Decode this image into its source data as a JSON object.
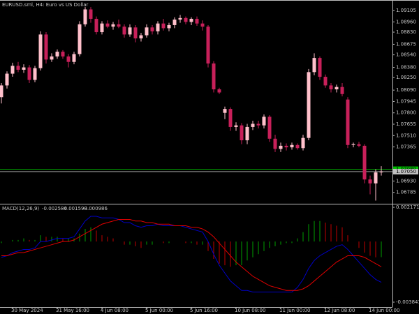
{
  "chart_data": [
    {
      "type": "candlestick",
      "title": "EURUSD.sml, H4:  Euro vs US Dollar",
      "up_color": "#ffc0cb",
      "down_color": "#c8205a",
      "open": [
        1.08,
        1.0815,
        1.083,
        1.084,
        1.0835,
        1.0838,
        1.0822,
        1.0837,
        1.088,
        1.0848,
        1.0852,
        1.0858,
        1.0852,
        1.0845,
        1.0855,
        1.0893,
        1.0912,
        1.09,
        1.0883,
        1.0894,
        1.089,
        1.0893,
        1.089,
        1.088,
        1.0889,
        1.0875,
        1.0879,
        1.0889,
        1.0884,
        1.0894,
        1.0888,
        1.0892,
        1.0899,
        1.0901,
        1.0896,
        1.09,
        1.0894,
        1.089,
        1.0843,
        1.081,
        1.078,
        1.0785,
        1.0762,
        1.0764,
        1.0745,
        1.0762,
        1.0766,
        1.0764,
        1.0775,
        1.0747,
        1.0734,
        1.0738,
        1.0736,
        1.0739,
        1.0735,
        1.0748,
        1.0832,
        1.085,
        1.0826,
        1.0815,
        1.081,
        1.0813,
        1.0797,
        1.0739,
        1.074,
        1.0738,
        1.0695,
        1.069,
        1.0704
      ],
      "high": [
        1.0818,
        1.0833,
        1.0844,
        1.0845,
        1.0842,
        1.0841,
        1.084,
        1.0884,
        1.0883,
        1.0856,
        1.0861,
        1.086,
        1.0855,
        1.0858,
        1.0897,
        1.0915,
        1.0915,
        1.0903,
        1.0897,
        1.0898,
        1.0896,
        1.0899,
        1.0893,
        1.0893,
        1.0892,
        1.0882,
        1.0893,
        1.0892,
        1.0897,
        1.09,
        1.0895,
        1.0902,
        1.0905,
        1.0903,
        1.0902,
        1.0903,
        1.0898,
        1.0892,
        1.0846,
        1.0812,
        1.0788,
        1.0787,
        1.0768,
        1.0767,
        1.0766,
        1.077,
        1.077,
        1.0778,
        1.0777,
        1.0752,
        1.0742,
        1.0741,
        1.0742,
        1.0741,
        1.0752,
        1.0836,
        1.0856,
        1.0852,
        1.0829,
        1.0818,
        1.0816,
        1.0818,
        1.08,
        1.0742,
        1.0743,
        1.074,
        1.07,
        1.0708,
        1.0712
      ],
      "low": [
        1.0792,
        1.0811,
        1.0826,
        1.0832,
        1.0831,
        1.0818,
        1.0819,
        1.0834,
        1.0843,
        1.0845,
        1.0849,
        1.0849,
        1.0838,
        1.0842,
        1.0852,
        1.089,
        1.0895,
        1.088,
        1.088,
        1.0888,
        1.0886,
        1.0888,
        1.0876,
        1.0877,
        1.087,
        1.0871,
        1.0876,
        1.088,
        1.088,
        1.0885,
        1.0884,
        1.0888,
        1.0895,
        1.0893,
        1.0892,
        1.0891,
        1.0885,
        1.0838,
        1.0806,
        1.0804,
        1.0772,
        1.0757,
        1.0757,
        1.074,
        1.074,
        1.0758,
        1.076,
        1.076,
        1.0743,
        1.073,
        1.073,
        1.0732,
        1.0733,
        1.0733,
        1.0732,
        1.0745,
        1.0828,
        1.0822,
        1.0812,
        1.0806,
        1.0806,
        1.0801,
        1.0735,
        1.0736,
        1.0736,
        1.069,
        1.0676,
        1.0668,
        1.07
      ],
      "close": [
        1.0815,
        1.083,
        1.084,
        1.0835,
        1.0838,
        1.0822,
        1.0837,
        1.088,
        1.0848,
        1.0852,
        1.0858,
        1.0852,
        1.0845,
        1.0855,
        1.0893,
        1.0912,
        1.09,
        1.0883,
        1.0894,
        1.089,
        1.0893,
        1.089,
        1.088,
        1.0889,
        1.0875,
        1.0879,
        1.0889,
        1.0884,
        1.0894,
        1.0888,
        1.0892,
        1.0899,
        1.0901,
        1.0896,
        1.09,
        1.0894,
        1.089,
        1.0843,
        1.081,
        1.0806,
        1.0785,
        1.0762,
        1.0764,
        1.0745,
        1.0762,
        1.0766,
        1.0764,
        1.0775,
        1.0747,
        1.0734,
        1.0738,
        1.0736,
        1.0739,
        1.0735,
        1.0748,
        1.0832,
        1.085,
        1.0826,
        1.0815,
        1.081,
        1.0813,
        1.0804,
        1.0739,
        1.074,
        1.0738,
        1.0695,
        1.069,
        1.0704,
        1.0705
      ],
      "ylim": [
        1.0664,
        1.0924
      ],
      "yticks": [
        1.09105,
        {
          "value": 1.0896,
          "label": "1.08960"
        },
        {
          "value": 1.0883,
          "label": "1.08830"
        },
        1.08675,
        {
          "value": 1.0854,
          "label": "1.08540"
        },
        {
          "value": 1.0838,
          "label": "1.08380"
        },
        {
          "value": 1.0825,
          "label": "1.08250"
        },
        {
          "value": 1.0809,
          "label": "1.08090"
        },
        1.07945,
        {
          "value": 1.078,
          "label": "1.07800"
        },
        1.07655,
        {
          "value": 1.0751,
          "label": "1.07510"
        },
        1.07365,
        {
          "value": 1.0693,
          "label": "1.06930"
        },
        1.06785
      ],
      "price_lines": [
        {
          "value": 1.0708,
          "label": "1.07080",
          "color": "#00c000"
        },
        {
          "value": 1.0705,
          "label": "1.07050",
          "color": "#c0c0c0"
        }
      ],
      "xticks": [
        {
          "value": 2,
          "label": "30 May 2024"
        },
        {
          "value": 10,
          "label": "31 May 16:00"
        },
        {
          "value": 18,
          "label": "4 Jun 08:00"
        },
        {
          "value": 26,
          "label": "5 Jun 00:00"
        },
        {
          "value": 34,
          "label": "5 Jun 16:00"
        },
        {
          "value": 42,
          "label": "10 Jun 08:00"
        },
        {
          "value": 50,
          "label": "11 Jun 00:00"
        },
        {
          "value": 58,
          "label": "12 Jun 08:00"
        },
        {
          "value": 66,
          "label": "14 Jun 00:00"
        }
      ]
    },
    {
      "type": "macd",
      "title": "MACD(12,26,9)",
      "series": [
        {
          "color": "#0000c8",
          "values": [
            -0.001,
            -0.0009,
            -0.0007,
            -0.0006,
            -0.0005,
            -0.0005,
            -0.0004,
            0.0,
            0.0,
            0.0001,
            0.0002,
            0.0002,
            0.0002,
            0.0003,
            0.0008,
            0.0013,
            0.0016,
            0.0016,
            0.0015,
            0.0015,
            0.0015,
            0.0014,
            0.0012,
            0.0012,
            0.001,
            0.0009,
            0.001,
            0.001,
            0.0011,
            0.001,
            0.001,
            0.001,
            0.001,
            0.0009,
            0.0008,
            0.0007,
            0.0006,
            0.0,
            -0.0008,
            -0.0015,
            -0.002,
            -0.0025,
            -0.0028,
            -0.0031,
            -0.0031,
            -0.0032,
            -0.0032,
            -0.0032,
            -0.0032,
            -0.0032,
            -0.0032,
            -0.0032,
            -0.0032,
            -0.0029,
            -0.0024,
            -0.0017,
            -0.0012,
            -0.0009,
            -0.0007,
            -0.0005,
            -0.0003,
            -0.0002,
            -0.0005,
            -0.0009,
            -0.0013,
            -0.0017,
            -0.0021,
            -0.0024,
            -0.002584
          ]
        },
        {
          "color": "#e00000",
          "values": [
            -0.0009,
            -0.0009,
            -0.0008,
            -0.0007,
            -0.0007,
            -0.0006,
            -0.0005,
            -0.0004,
            -0.0003,
            -0.0002,
            -0.0001,
            0.0,
            0.0,
            0.0001,
            0.0003,
            0.0005,
            0.0007,
            0.0009,
            0.0011,
            0.0012,
            0.0013,
            0.0014,
            0.0014,
            0.0014,
            0.0013,
            0.0013,
            0.0012,
            0.0012,
            0.0011,
            0.0011,
            0.0011,
            0.001,
            0.001,
            0.001,
            0.0009,
            0.0009,
            0.0008,
            0.0006,
            0.0003,
            -0.0001,
            -0.0005,
            -0.0009,
            -0.0013,
            -0.0016,
            -0.0019,
            -0.0022,
            -0.0024,
            -0.0026,
            -0.0028,
            -0.0029,
            -0.003,
            -0.0031,
            -0.0031,
            -0.0031,
            -0.003,
            -0.0028,
            -0.0025,
            -0.0022,
            -0.0019,
            -0.0016,
            -0.0013,
            -0.0011,
            -0.0009,
            -0.0009,
            -0.0009,
            -0.001,
            -0.0012,
            -0.0014,
            -0.001598
          ]
        }
      ],
      "histogram": {
        "up_color": "#00a000",
        "down_color": "#c00000",
        "values": [
          -0.0001,
          0.0,
          0.0001,
          0.0001,
          0.0002,
          0.0001,
          0.0001,
          0.0004,
          0.0003,
          0.0003,
          0.0003,
          0.0002,
          0.0002,
          0.0002,
          0.0005,
          0.0008,
          0.0009,
          0.0007,
          0.0004,
          0.0003,
          0.0002,
          0.0,
          -0.0002,
          -0.0002,
          -0.0003,
          -0.0004,
          -0.0002,
          -0.0002,
          0.0,
          -0.0001,
          -0.0001,
          0.0,
          0.0,
          -0.0001,
          -0.0001,
          -0.0002,
          -0.0002,
          -0.0006,
          -0.0011,
          -0.0014,
          -0.0015,
          -0.0016,
          -0.0015,
          -0.0015,
          -0.0012,
          -0.001,
          -0.0008,
          -0.0006,
          -0.0004,
          -0.0003,
          -0.0002,
          -0.0001,
          -0.0001,
          0.0002,
          0.0006,
          0.0011,
          0.0013,
          0.0013,
          0.0012,
          0.0011,
          0.001,
          0.0009,
          0.0004,
          0.0,
          -0.0004,
          -0.0007,
          -0.0009,
          -0.001,
          -0.000986
        ]
      },
      "ylim": [
        -0.00415,
        0.00235
      ],
      "yticks": [
        0.002171,
        -0.003841
      ]
    }
  ]
}
